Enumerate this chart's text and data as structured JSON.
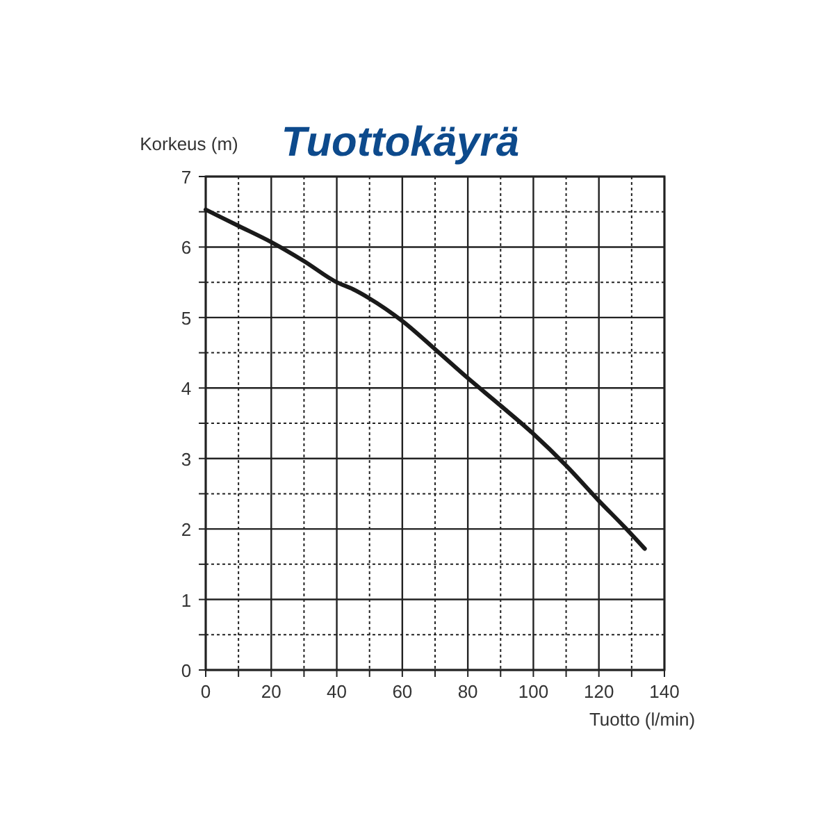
{
  "chart_data": {
    "type": "line",
    "title": "Tuottokäyrä",
    "xlabel": "Tuotto (l/min)",
    "ylabel": "Korkeus (m)",
    "x": [
      0,
      10,
      20,
      30,
      40,
      45,
      50,
      60,
      70,
      80,
      90,
      100,
      110,
      120,
      128,
      134
    ],
    "series": [
      {
        "color": "#1a1a1a",
        "values": [
          6.53,
          6.3,
          6.07,
          5.8,
          5.5,
          5.4,
          5.27,
          4.95,
          4.55,
          4.14,
          3.75,
          3.35,
          2.9,
          2.4,
          2.02,
          1.72
        ]
      }
    ],
    "xlim": [
      0,
      140
    ],
    "ylim": [
      0,
      7
    ],
    "xticks": [
      0,
      {
        "value": 10,
        "label": null
      },
      20,
      {
        "value": 30,
        "label": null
      },
      40,
      {
        "value": 50,
        "label": null
      },
      60,
      {
        "value": 70,
        "label": null
      },
      80,
      {
        "value": 90,
        "label": null
      },
      100,
      {
        "value": 110,
        "label": null
      },
      120,
      {
        "value": 130,
        "label": null
      },
      140
    ],
    "yticks": [
      0,
      {
        "value": 0.5,
        "label": null
      },
      1,
      {
        "value": 1.5,
        "label": null
      },
      2,
      {
        "value": 2.5,
        "label": null
      },
      3,
      {
        "value": 3.5,
        "label": null
      },
      4,
      {
        "value": 4.5,
        "label": null
      },
      5,
      {
        "value": 5.5,
        "label": null
      },
      6,
      {
        "value": 6.5,
        "label": null
      },
      7
    ],
    "grid": true,
    "line_style": "solid",
    "marker": "none"
  }
}
